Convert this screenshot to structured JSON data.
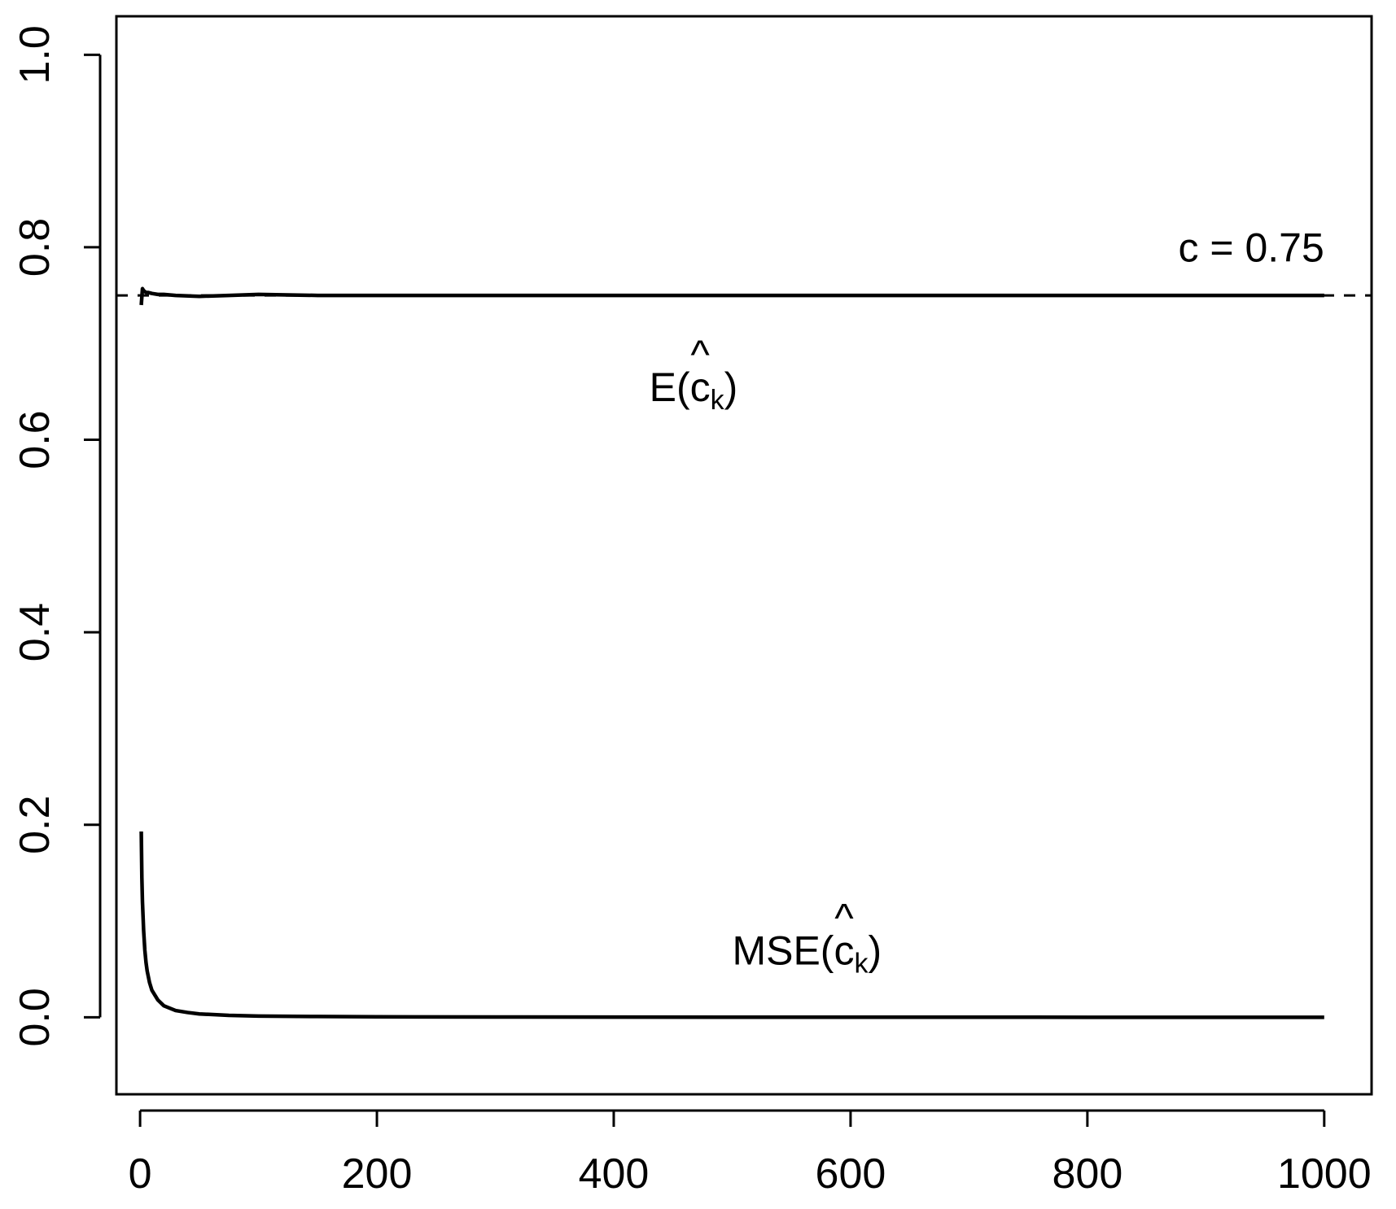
{
  "chart_data": {
    "type": "line",
    "title": "",
    "xlabel": "",
    "ylabel": "",
    "xlim": [
      -20,
      1040
    ],
    "ylim": [
      -0.08,
      1.04
    ],
    "x_ticks": [
      0,
      200,
      400,
      600,
      800,
      1000
    ],
    "x_tick_labels": [
      "0",
      "200",
      "400",
      "600",
      "800",
      "1000"
    ],
    "y_ticks": [
      0.0,
      0.2,
      0.4,
      0.6,
      0.8,
      1.0
    ],
    "y_tick_labels": [
      "0.0",
      "0.2",
      "0.4",
      "0.6",
      "0.8",
      "1.0"
    ],
    "grid": false,
    "series": [
      {
        "style": "solid",
        "x": [
          1,
          2,
          3,
          4,
          5,
          7,
          10,
          15,
          20,
          30,
          50,
          75,
          100,
          150,
          200,
          300,
          400,
          500,
          600,
          700,
          800,
          900,
          1000
        ],
        "values": [
          0.74,
          0.757,
          0.755,
          0.754,
          0.753,
          0.753,
          0.752,
          0.751,
          0.751,
          0.75,
          0.749,
          0.75,
          0.751,
          0.75,
          0.75,
          0.75,
          0.75,
          0.75,
          0.75,
          0.75,
          0.75,
          0.75,
          0.75
        ]
      },
      {
        "style": "solid",
        "x": [
          1,
          1.5,
          2,
          3,
          4,
          5,
          6,
          8,
          10,
          15,
          20,
          30,
          40,
          50,
          75,
          100,
          150,
          200,
          300,
          400,
          500,
          600,
          700,
          800,
          900,
          1000
        ],
        "values": [
          0.193,
          0.145,
          0.12,
          0.09,
          0.07,
          0.057,
          0.048,
          0.036,
          0.028,
          0.018,
          0.012,
          0.007,
          0.005,
          0.0035,
          0.002,
          0.0013,
          0.0008,
          0.0005,
          0.0003,
          0.0002,
          0.0001,
          0.0001,
          0.0001,
          0.0,
          0.0,
          0.0
        ]
      }
    ],
    "reference_line": {
      "y": 0.75,
      "style": "dashed"
    },
    "annotations": [
      {
        "main": "c = 0.75",
        "sub": "",
        "x": 1000,
        "y": 0.785
      },
      {
        "main": "E(",
        "hat": "^",
        "base": "c",
        "sub": "k",
        "close": ")",
        "x": 430,
        "y": 0.64
      },
      {
        "main": "MSE(",
        "hat": "^",
        "base": "c",
        "sub": "k",
        "close": ")",
        "x": 500,
        "y": 0.055
      }
    ]
  }
}
